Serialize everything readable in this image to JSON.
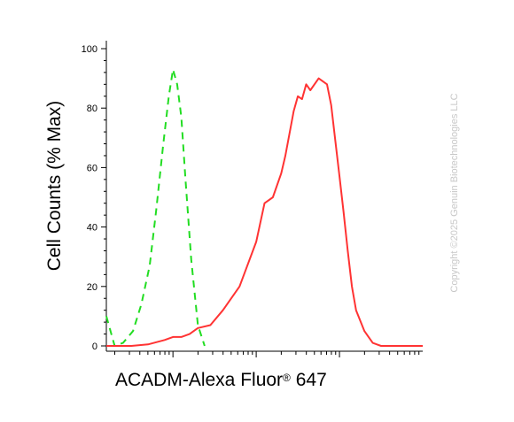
{
  "chart_data": {
    "type": "line",
    "title": "",
    "ylabel": "Cell Counts (% Max)",
    "xlabel": {
      "prefix": "ACADM-Alexa Fluor",
      "superscript": "®",
      "suffix": " 647"
    },
    "x_scale": "log",
    "ylim": [
      0,
      100
    ],
    "yticks": [
      "0",
      "20",
      "40",
      "60",
      "80",
      "100"
    ],
    "grid": false,
    "legend": "none",
    "series": [
      {
        "style": "dashed",
        "color": "#22dd22",
        "x": [
          0.2,
          0.3,
          0.4,
          0.52,
          0.62,
          0.72,
          0.8,
          0.88,
          0.95,
          1.0,
          1.05,
          1.1,
          1.15,
          1.22,
          1.3,
          1.38
        ],
        "y": [
          10,
          0,
          1,
          5,
          14,
          27,
          46,
          67,
          84,
          93,
          88,
          77,
          56,
          29,
          7,
          0
        ]
      },
      {
        "style": "solid",
        "color": "#ff3333",
        "x": [
          0.2,
          0.5,
          0.7,
          0.9,
          1.0,
          1.1,
          1.2,
          1.3,
          1.45,
          1.6,
          1.8,
          2.0,
          2.1,
          2.2,
          2.3,
          2.35,
          2.45,
          2.5,
          2.55,
          2.6,
          2.65,
          2.75,
          2.85,
          2.9,
          2.95,
          3.0,
          3.05,
          3.1,
          3.15,
          3.2,
          3.3,
          3.4,
          3.45,
          3.5,
          3.6,
          3.7,
          3.8,
          3.9,
          4.0
        ],
        "y": [
          0,
          0,
          0.5,
          2,
          3,
          3,
          4,
          6,
          7,
          12,
          20,
          35,
          48,
          50,
          58,
          64,
          79,
          84,
          83,
          88,
          86,
          90,
          88,
          81,
          69,
          57,
          45,
          32,
          20,
          12,
          5,
          1,
          0.5,
          0,
          0,
          0,
          0,
          0,
          0
        ]
      }
    ]
  },
  "watermark": "Copyright ©2025 Genuin Biotechnologies LLC"
}
